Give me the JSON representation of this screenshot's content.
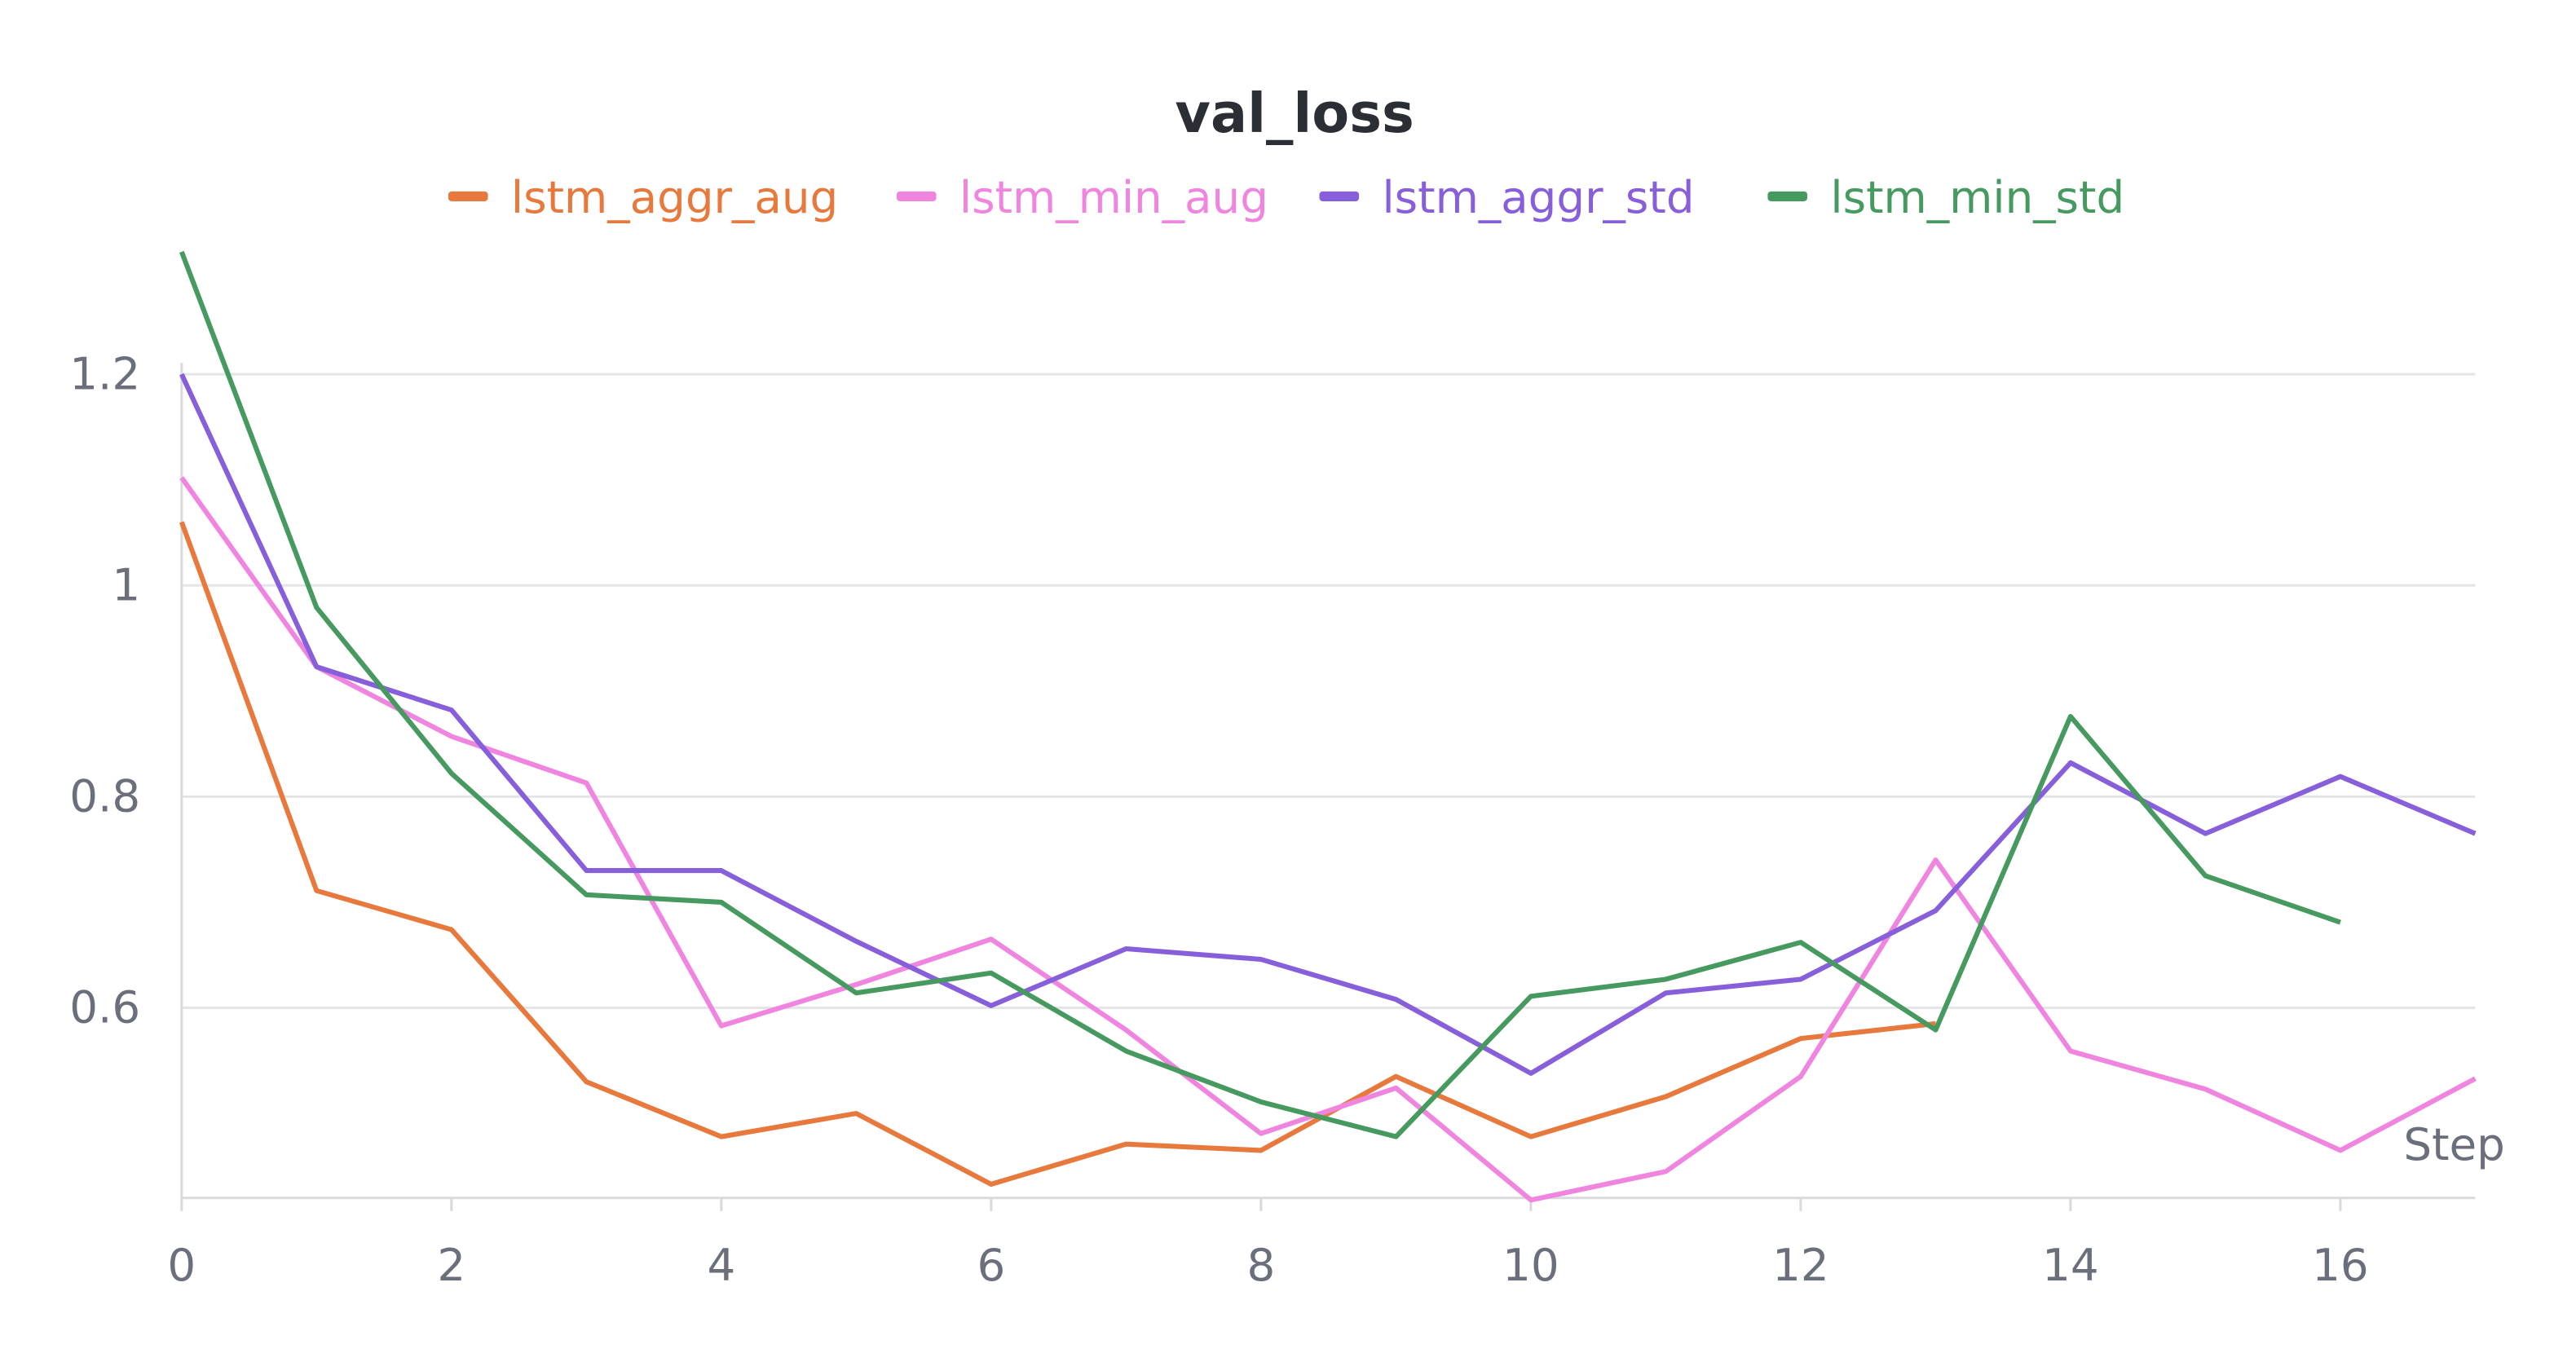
{
  "chart_data": {
    "type": "line",
    "title": "val_loss",
    "xlabel": "Step",
    "ylabel": "",
    "xlim": [
      0,
      17
    ],
    "ylim": [
      0.42,
      1.32
    ],
    "grid": true,
    "legend_position": "top",
    "x_ticks": [
      0,
      2,
      4,
      6,
      8,
      10,
      12,
      14,
      16
    ],
    "y_ticks": [
      0.6,
      0.8,
      1,
      1.2
    ],
    "y_tick_labels": [
      "0.6",
      "0.8",
      "1",
      "1.2"
    ],
    "series": [
      {
        "name": "lstm_aggr_aug",
        "color": "#e8793d",
        "x": [
          0,
          1,
          2,
          3,
          4,
          5,
          6,
          7,
          8,
          9,
          10,
          11,
          12,
          13
        ],
        "y": [
          1.06,
          0.711,
          0.674,
          0.53,
          0.478,
          0.5,
          0.433,
          0.471,
          0.465,
          0.535,
          0.478,
          0.516,
          0.571,
          0.585
        ]
      },
      {
        "name": "lstm_min_aug",
        "color": "#f085e0",
        "x": [
          0,
          1,
          2,
          3,
          4,
          5,
          6,
          7,
          8,
          9,
          10,
          11,
          12,
          13,
          14,
          15,
          16,
          17
        ],
        "y": [
          1.102,
          0.923,
          0.857,
          0.813,
          0.583,
          0.622,
          0.665,
          0.579,
          0.481,
          0.524,
          0.418,
          0.445,
          0.535,
          0.74,
          0.559,
          0.523,
          0.465,
          0.533
        ]
      },
      {
        "name": "lstm_aggr_std",
        "color": "#875fdb",
        "x": [
          0,
          1,
          2,
          3,
          4,
          5,
          6,
          7,
          8,
          9,
          10,
          11,
          12,
          13,
          14,
          15,
          16,
          17
        ],
        "y": [
          1.2,
          0.923,
          0.882,
          0.73,
          0.73,
          0.663,
          0.602,
          0.656,
          0.646,
          0.608,
          0.538,
          0.614,
          0.627,
          0.692,
          0.832,
          0.765,
          0.819,
          0.765
        ]
      },
      {
        "name": "lstm_min_std",
        "color": "#479a5f",
        "x": [
          0,
          1,
          2,
          3,
          4,
          5,
          6,
          7,
          8,
          9,
          10,
          11,
          12,
          13,
          14,
          15,
          16
        ],
        "y": [
          1.316,
          0.979,
          0.822,
          0.707,
          0.7,
          0.614,
          0.633,
          0.559,
          0.511,
          0.478,
          0.611,
          0.627,
          0.662,
          0.579,
          0.876,
          0.725,
          0.681
        ]
      }
    ]
  }
}
